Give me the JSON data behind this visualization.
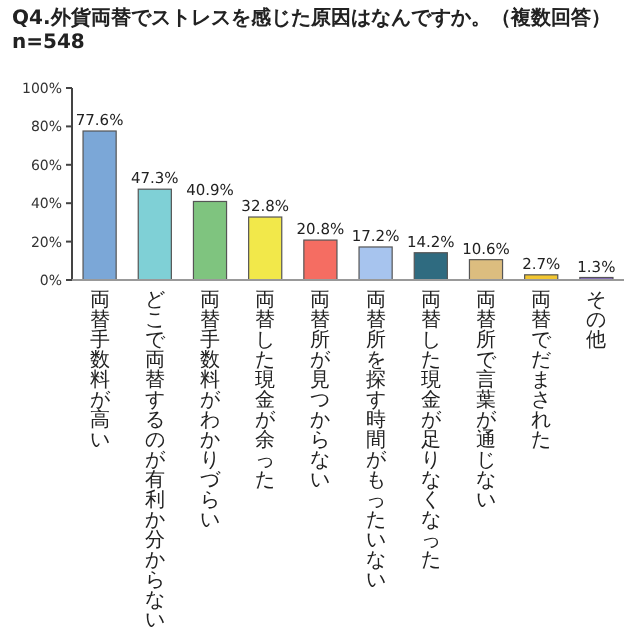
{
  "chart_data": {
    "type": "bar",
    "title": "Q4.外貨両替でストレスを感じた原因はなんですか。（複数回答）n=548",
    "categories": [
      "両替手数料が高い",
      "どこで両替するのが有利か分からない",
      "両替手数料がわかりづらい",
      "両替した現金が余った",
      "両替所が見つからない",
      "両替所を探す時間がもったいない",
      "両替した現金が足りなくなった",
      "両替所で言葉が通じない",
      "両替でだまされた",
      "その他"
    ],
    "values": [
      77.6,
      47.3,
      40.9,
      32.8,
      20.8,
      17.2,
      14.2,
      10.6,
      2.7,
      1.3
    ],
    "colors": [
      "#7ba7d7",
      "#7fd0d6",
      "#7fc47f",
      "#f2e84a",
      "#f56d62",
      "#a7c4ee",
      "#2f6b80",
      "#dcbd7f",
      "#f2c631",
      "#8a6fc0"
    ],
    "value_labels": [
      "77.6%",
      "47.3%",
      "40.9%",
      "32.8%",
      "20.8%",
      "17.2%",
      "14.2%",
      "10.6%",
      "2.7%",
      "1.3%"
    ],
    "ylim": [
      0,
      100
    ],
    "yticks": [
      {
        "value": 0,
        "label": "0%"
      },
      {
        "value": 20,
        "label": "20%"
      },
      {
        "value": 40,
        "label": "40%"
      },
      {
        "value": 60,
        "label": "60%"
      },
      {
        "value": 80,
        "label": "80%"
      },
      {
        "value": 100,
        "label": "100%"
      }
    ],
    "grid": false
  }
}
